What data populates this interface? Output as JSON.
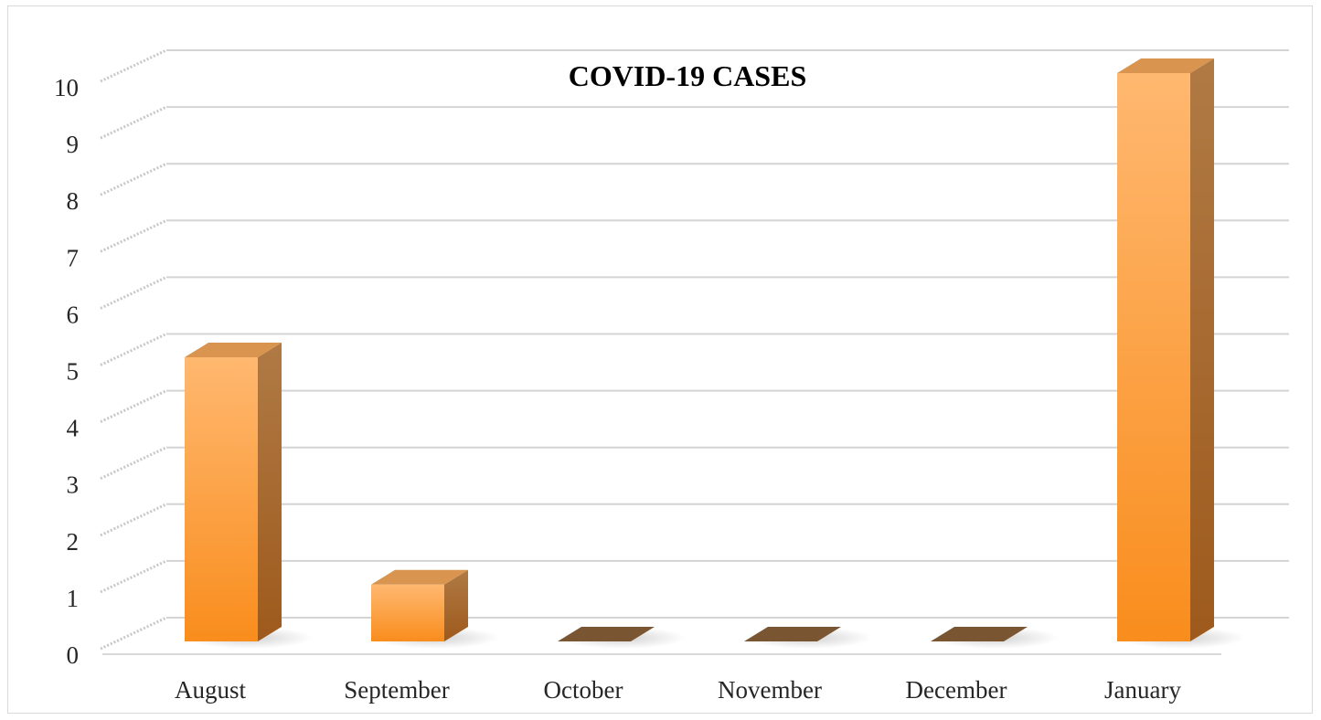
{
  "chart_data": {
    "type": "bar",
    "title": "COVID-19 CASES",
    "categories": [
      "August",
      "September",
      "October",
      "November",
      "December",
      "January"
    ],
    "values": [
      5,
      1,
      0,
      0,
      0,
      10
    ],
    "y_ticks": [
      "0",
      "1",
      "2",
      "3",
      "4",
      "5",
      "6",
      "7",
      "8",
      "9",
      "10"
    ],
    "ylim": [
      0,
      10
    ],
    "xlabel": "",
    "ylabel": "",
    "grid": true,
    "legend": "none",
    "style": "3d-column",
    "colors": {
      "bar_front_top": "#ffb870",
      "bar_front_bottom": "#f98d1d",
      "bar_side": "#a6642a",
      "bar_top": "#d9954f",
      "zero_floor": "#7a5532",
      "gridline": "#d0d0d0"
    }
  }
}
